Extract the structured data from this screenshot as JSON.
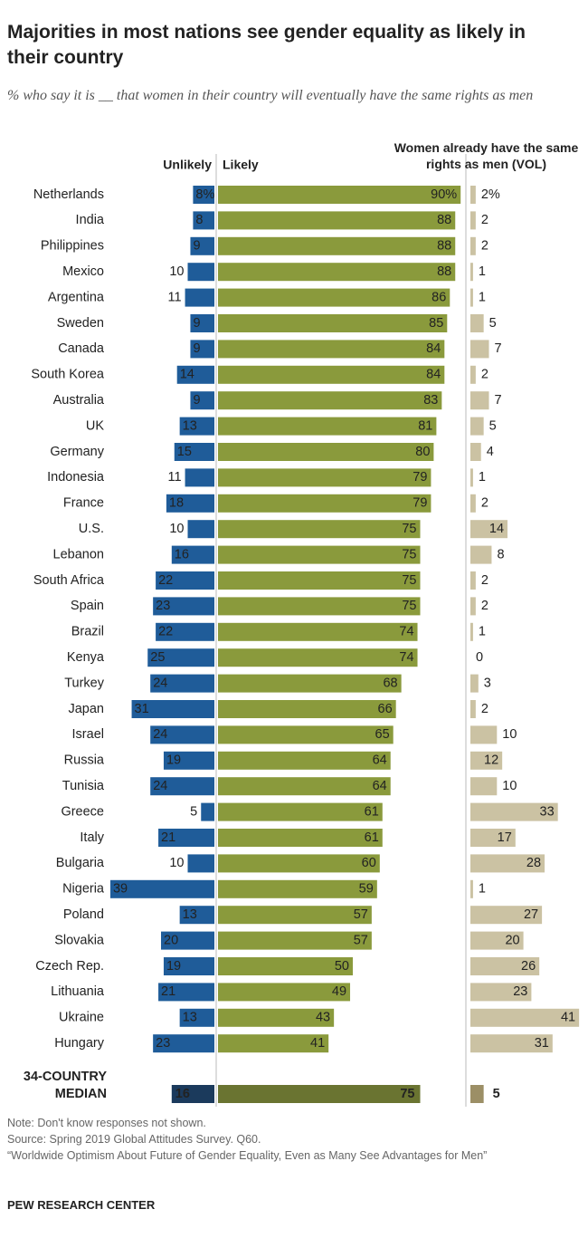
{
  "chart_data": {
    "type": "diverging-bar",
    "title": "Majorities in most nations see gender equality as likely in their country",
    "subtitle": "% who say it is __ that women in their country will eventually have the same rights as men",
    "categories": [
      "Netherlands",
      "India",
      "Philippines",
      "Mexico",
      "Argentina",
      "Sweden",
      "Canada",
      "South Korea",
      "Australia",
      "UK",
      "Germany",
      "Indonesia",
      "France",
      "U.S.",
      "Lebanon",
      "South Africa",
      "Spain",
      "Brazil",
      "Kenya",
      "Turkey",
      "Japan",
      "Israel",
      "Russia",
      "Tunisia",
      "Greece",
      "Italy",
      "Bulgaria",
      "Nigeria",
      "Poland",
      "Slovakia",
      "Czech Rep.",
      "Lithuania",
      "Ukraine",
      "Hungary"
    ],
    "series": [
      {
        "name": "Unlikely",
        "color": "#1f5c99",
        "values": [
          8,
          8,
          9,
          10,
          11,
          9,
          9,
          14,
          9,
          13,
          15,
          11,
          18,
          10,
          16,
          22,
          23,
          22,
          25,
          24,
          31,
          24,
          19,
          24,
          5,
          21,
          10,
          39,
          13,
          20,
          19,
          21,
          13,
          23
        ],
        "value_labels": [
          "8%",
          "8",
          "9",
          "10",
          "11",
          "9",
          "9",
          "14",
          "9",
          "13",
          "15",
          "11",
          "18",
          "10",
          "16",
          "22",
          "23",
          "22",
          "25",
          "24",
          "31",
          "24",
          "19",
          "24",
          "5",
          "21",
          "10",
          "39",
          "13",
          "20",
          "19",
          "21",
          "13",
          "23"
        ]
      },
      {
        "name": "Likely",
        "color": "#8a9a3c",
        "values": [
          90,
          88,
          88,
          88,
          86,
          85,
          84,
          84,
          83,
          81,
          80,
          79,
          79,
          75,
          75,
          75,
          75,
          74,
          74,
          68,
          66,
          65,
          64,
          64,
          61,
          61,
          60,
          59,
          57,
          57,
          50,
          49,
          43,
          41
        ],
        "value_labels": [
          "90%",
          "88",
          "88",
          "88",
          "86",
          "85",
          "84",
          "84",
          "83",
          "81",
          "80",
          "79",
          "79",
          "75",
          "75",
          "75",
          "75",
          "74",
          "74",
          "68",
          "66",
          "65",
          "64",
          "64",
          "61",
          "61",
          "60",
          "59",
          "57",
          "57",
          "50",
          "49",
          "43",
          "41"
        ]
      },
      {
        "name": "Women already have the same rights as men (VOL)",
        "color": "#cbc2a3",
        "values": [
          2,
          2,
          2,
          1,
          1,
          5,
          7,
          2,
          7,
          5,
          4,
          1,
          2,
          14,
          8,
          2,
          2,
          1,
          0,
          3,
          2,
          10,
          12,
          10,
          33,
          17,
          28,
          1,
          27,
          20,
          26,
          23,
          41,
          31
        ],
        "value_labels": [
          "2%",
          "2",
          "2",
          "1",
          "1",
          "5",
          "7",
          "2",
          "7",
          "5",
          "4",
          "1",
          "2",
          "14",
          "8",
          "2",
          "2",
          "1",
          "0",
          "3",
          "2",
          "10",
          "12",
          "10",
          "33",
          "17",
          "28",
          "1",
          "27",
          "20",
          "26",
          "23",
          "41",
          "31"
        ]
      }
    ],
    "median": {
      "label_lines": [
        "34-COUNTRY",
        "MEDIAN"
      ],
      "values": [
        16,
        75,
        5
      ],
      "colors": [
        "#1b3a5c",
        "#6a7431",
        "#9c8f66"
      ]
    },
    "notes": [
      "Note: Don't know responses not shown.",
      "Source: Spring 2019 Global Attitudes Survey. Q60.",
      "“Worldwide Optimism About Future of Gender Equality, Even as Many See Advantages for Men”"
    ],
    "credit": "PEW RESEARCH CENTER"
  }
}
